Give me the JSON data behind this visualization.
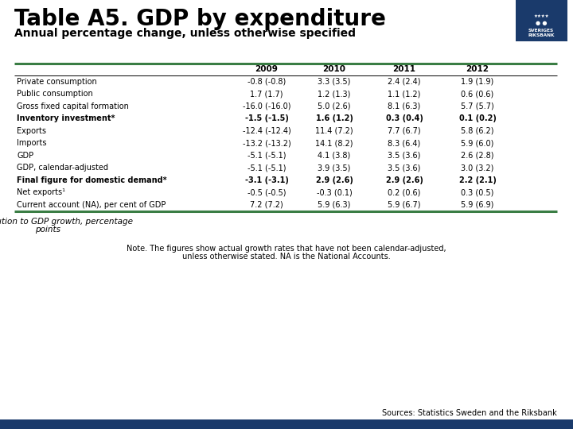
{
  "title": "Table A5. GDP by expenditure",
  "subtitle": "Annual percentage change, unless otherwise specified",
  "columns": [
    "",
    "2009",
    "2010",
    "2011",
    "2012"
  ],
  "rows": [
    {
      "label": "Private consumption",
      "bold": false,
      "values": [
        "-0.8 (-0.8)",
        "3.3 (3.5)",
        "2.4 (2.4)",
        "1.9 (1.9)"
      ]
    },
    {
      "label": "Public consumption",
      "bold": false,
      "values": [
        "1.7 (1.7)",
        "1.2 (1.3)",
        "1.1 (1.2)",
        "0.6 (0.6)"
      ]
    },
    {
      "label": "Gross fixed capital formation",
      "bold": false,
      "values": [
        "-16.0 (-16.0)",
        "5.0 (2.6)",
        "8.1 (6.3)",
        "5.7 (5.7)"
      ]
    },
    {
      "label": "Inventory investment*",
      "bold": true,
      "values": [
        "-1.5 (-1.5)",
        "1.6 (1.2)",
        "0.3 (0.4)",
        "0.1 (0.2)"
      ]
    },
    {
      "label": "Exports",
      "bold": false,
      "values": [
        "-12.4 (-12.4)",
        "11.4 (7.2)",
        "7.7 (6.7)",
        "5.8 (6.2)"
      ]
    },
    {
      "label": "Imports",
      "bold": false,
      "values": [
        "-13.2 (-13.2)",
        "14.1 (8.2)",
        "8.3 (6.4)",
        "5.9 (6.0)"
      ]
    },
    {
      "label": "GDP",
      "bold": false,
      "values": [
        "-5.1 (-5.1)",
        "4.1 (3.8)",
        "3.5 (3.6)",
        "2.6 (2.8)"
      ]
    },
    {
      "label": "GDP, calendar-adjusted",
      "bold": false,
      "values": [
        "-5.1 (-5.1)",
        "3.9 (3.5)",
        "3.5 (3.6)",
        "3.0 (3.2)"
      ]
    },
    {
      "label": "Final figure for domestic demand*",
      "bold": true,
      "values": [
        "-3.1 (-3.1)",
        "2.9 (2.6)",
        "2.9 (2.6)",
        "2.2 (2.1)"
      ]
    },
    {
      "label": "Net exports¹",
      "bold": false,
      "values": [
        "-0.5 (-0.5)",
        "-0.3 (0.1)",
        "0.2 (0.6)",
        "0.3 (0.5)"
      ]
    },
    {
      "label": "Current account (NA), per cent of GDP",
      "bold": false,
      "values": [
        "7.2 (7.2)",
        "5.9 (6.3)",
        "5.9 (6.7)",
        "5.9 (6.9)"
      ]
    }
  ],
  "footnote": "*Contribution to GDP growth, percentage\npoints",
  "note": "Note. The figures show actual growth rates that have not been calendar-adjusted,\nunless otherwise stated. NA is the National Accounts.",
  "source": "Sources: Statistics Sweden and the Riksbank",
  "bg_color": "#ffffff",
  "green_line_color": "#3a7d44",
  "dark_blue_bar_color": "#1a3a6b",
  "logo_bg_color": "#1a3a6b",
  "title_fontsize": 20,
  "subtitle_fontsize": 10,
  "table_fontsize": 7.0,
  "header_fontsize": 7.5,
  "note_fontsize": 7.0,
  "source_fontsize": 7.0,
  "footnote_fontsize": 7.5
}
